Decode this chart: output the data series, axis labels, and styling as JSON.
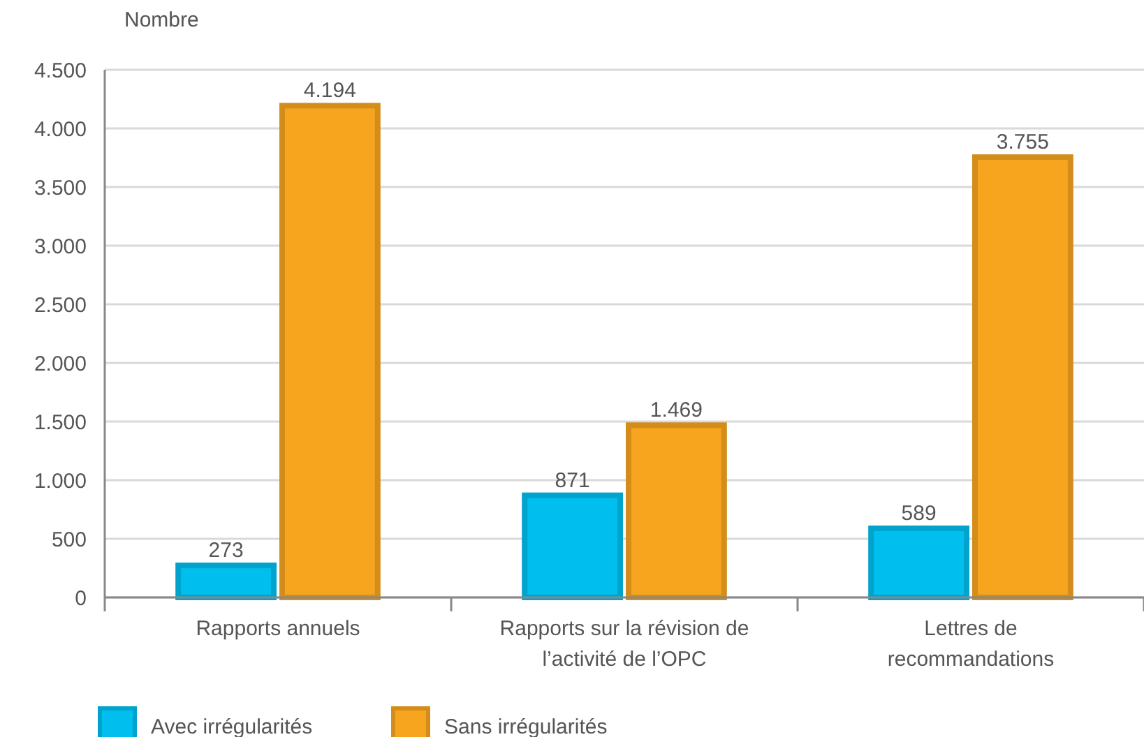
{
  "chart_data": {
    "type": "bar",
    "ylabel": "Nombre",
    "categories": [
      "Rapports annuels",
      "Rapports sur la révision de l’activité de l’OPC",
      "Lettres de recommandations"
    ],
    "series": [
      {
        "name": "Avec irrégularités",
        "color": "#00bfef",
        "values": [
          273,
          871,
          589
        ],
        "value_labels": [
          "273",
          "871",
          "589"
        ]
      },
      {
        "name": "Sans irrégularités",
        "color": "#f7a51f",
        "values": [
          4194,
          1469,
          3755
        ],
        "value_labels": [
          "4.194",
          "1.469",
          "3.755"
        ]
      }
    ],
    "ylim": [
      0,
      4500
    ],
    "yticks": [
      {
        "value": 0,
        "label": "0"
      },
      {
        "value": 500,
        "label": "500"
      },
      {
        "value": 1000,
        "label": "1.000"
      },
      {
        "value": 1500,
        "label": "1.500"
      },
      {
        "value": 2000,
        "label": "2.000"
      },
      {
        "value": 2500,
        "label": "2.500"
      },
      {
        "value": 3000,
        "label": "3.000"
      },
      {
        "value": 3500,
        "label": "3.500"
      },
      {
        "value": 4000,
        "label": "4.000"
      },
      {
        "value": 4500,
        "label": "4.500"
      }
    ],
    "grid": "y",
    "legend": "bottom left"
  }
}
